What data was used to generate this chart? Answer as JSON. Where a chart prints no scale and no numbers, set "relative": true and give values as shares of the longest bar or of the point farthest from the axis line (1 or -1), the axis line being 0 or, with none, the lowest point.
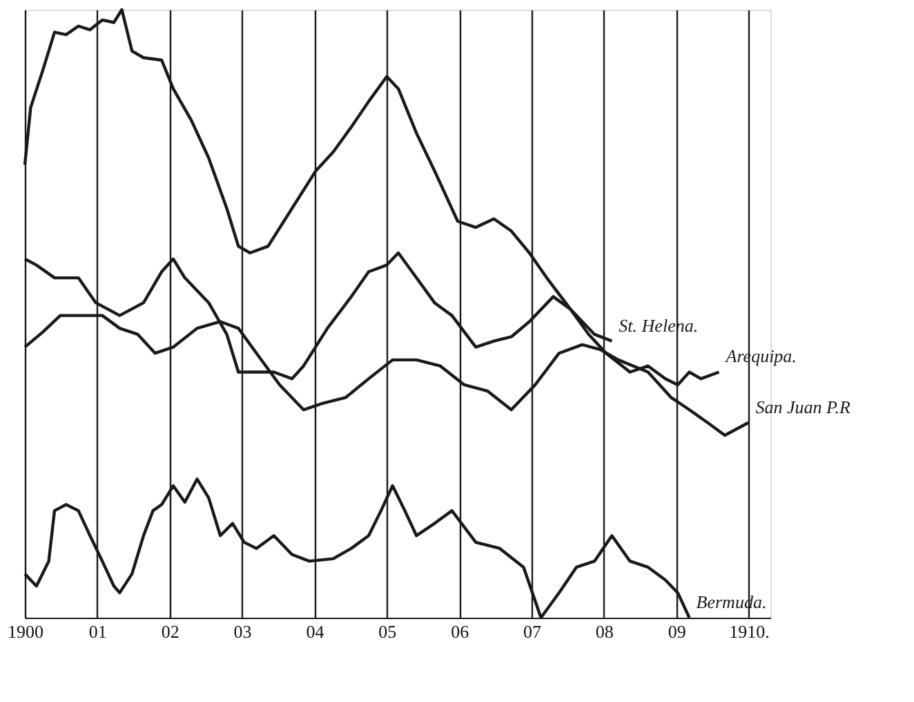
{
  "chart_data": {
    "type": "line",
    "relative": true,
    "xlim": [
      1900,
      1910.3
    ],
    "xticks": [
      {
        "value": 1900,
        "label": "1900"
      },
      {
        "value": 1901,
        "label": "01"
      },
      {
        "value": 1902,
        "label": "02"
      },
      {
        "value": 1903,
        "label": "03"
      },
      {
        "value": 1904,
        "label": "04"
      },
      {
        "value": 1905,
        "label": "05"
      },
      {
        "value": 1906,
        "label": "06"
      },
      {
        "value": 1907,
        "label": "07"
      },
      {
        "value": 1908,
        "label": "08"
      },
      {
        "value": 1909,
        "label": "09"
      },
      {
        "value": 1910,
        "label": "1910."
      }
    ],
    "grid": "x",
    "tick_labels": "x",
    "legend": false,
    "marker": "none",
    "line_style": "solid",
    "series": [
      {
        "name": "St. Helena.",
        "color": "#1a1a1a",
        "x": [
          1900,
          1900.08,
          1900.25,
          1900.41,
          1900.57,
          1900.74,
          1900.9,
          1901.07,
          1901.23,
          1901.34,
          1901.48,
          1901.64,
          1901.89,
          1902.05,
          1902.3,
          1902.54,
          1902.79,
          1902.95,
          1903.11,
          1903.36,
          1903.69,
          1904.02,
          1904.26,
          1904.51,
          1904.75,
          1905.0,
          1905.16,
          1905.41,
          1905.66,
          1905.98,
          1906.23,
          1906.48,
          1906.72,
          1906.97,
          1907.21,
          1907.54,
          1907.87,
          1908.11
        ],
        "values": [
          0.745,
          0.839,
          0.901,
          0.963,
          0.959,
          0.973,
          0.967,
          0.983,
          0.979,
          1,
          0.932,
          0.921,
          0.917,
          0.87,
          0.818,
          0.756,
          0.673,
          0.611,
          0.6,
          0.611,
          0.673,
          0.735,
          0.766,
          0.807,
          0.849,
          0.89,
          0.87,
          0.797,
          0.735,
          0.652,
          0.642,
          0.656,
          0.636,
          0.6,
          0.559,
          0.507,
          0.466,
          0.455
        ]
      },
      {
        "name": "Arequipa.",
        "color": "#1a1a1a",
        "x": [
          1900,
          1900.16,
          1900.41,
          1900.74,
          1900.98,
          1901.31,
          1901.64,
          1901.89,
          1902.05,
          1902.21,
          1902.54,
          1902.79,
          1902.95,
          1903.11,
          1903.44,
          1903.69,
          1903.85,
          1904.18,
          1904.51,
          1904.75,
          1905.0,
          1905.16,
          1905.41,
          1905.66,
          1905.9,
          1906.23,
          1906.48,
          1906.72,
          1906.97,
          1907.3,
          1907.54,
          1907.79,
          1908.03,
          1908.36,
          1908.61,
          1908.85,
          1909.02,
          1909.18,
          1909.34,
          1909.59
        ],
        "values": [
          0.59,
          0.58,
          0.559,
          0.559,
          0.518,
          0.497,
          0.518,
          0.569,
          0.59,
          0.559,
          0.518,
          0.466,
          0.404,
          0.404,
          0.404,
          0.393,
          0.414,
          0.476,
          0.528,
          0.569,
          0.58,
          0.6,
          0.559,
          0.518,
          0.497,
          0.445,
          0.455,
          0.462,
          0.487,
          0.528,
          0.507,
          0.466,
          0.435,
          0.404,
          0.414,
          0.393,
          0.383,
          0.404,
          0.393,
          0.404
        ]
      },
      {
        "name": "San Juan P.R",
        "color": "#1a1a1a",
        "x": [
          1900,
          1900.25,
          1900.49,
          1900.74,
          1901.07,
          1901.31,
          1901.56,
          1901.8,
          1902.05,
          1902.38,
          1902.7,
          1902.95,
          1903.2,
          1903.52,
          1903.85,
          1904.1,
          1904.43,
          1904.75,
          1905.08,
          1905.41,
          1905.74,
          1906.07,
          1906.39,
          1906.72,
          1907.05,
          1907.38,
          1907.7,
          1907.95,
          1908.2,
          1908.61,
          1908.93,
          1909.18,
          1909.43,
          1909.67,
          1910.0
        ],
        "values": [
          0.445,
          0.47,
          0.497,
          0.497,
          0.497,
          0.476,
          0.466,
          0.435,
          0.445,
          0.476,
          0.487,
          0.476,
          0.435,
          0.383,
          0.342,
          0.352,
          0.362,
          0.393,
          0.424,
          0.424,
          0.414,
          0.383,
          0.373,
          0.342,
          0.383,
          0.435,
          0.449,
          0.441,
          0.424,
          0.404,
          0.362,
          0.342,
          0.321,
          0.3,
          0.321
        ]
      },
      {
        "name": "Bermuda.",
        "color": "#1a1a1a",
        "x": [
          1900,
          1900.16,
          1900.33,
          1900.41,
          1900.57,
          1900.74,
          1900.9,
          1901.07,
          1901.23,
          1901.31,
          1901.48,
          1901.64,
          1901.77,
          1901.89,
          1902.05,
          1902.21,
          1902.38,
          1902.54,
          1902.7,
          1902.87,
          1903.03,
          1903.2,
          1903.44,
          1903.69,
          1903.93,
          1904.26,
          1904.51,
          1904.75,
          1904.92,
          1905.08,
          1905.25,
          1905.41,
          1905.66,
          1905.9,
          1906.23,
          1906.56,
          1906.89,
          1907.13,
          1907.38,
          1907.62,
          1907.87,
          1908.11,
          1908.36,
          1908.61,
          1908.85,
          1909.02,
          1909.18
        ],
        "values": [
          0.072,
          0.052,
          0.093,
          0.176,
          0.186,
          0.176,
          0.135,
          0.093,
          0.052,
          0.041,
          0.072,
          0.135,
          0.176,
          0.186,
          0.217,
          0.19,
          0.228,
          0.197,
          0.135,
          0.155,
          0.124,
          0.114,
          0.135,
          0.104,
          0.093,
          0.097,
          0.114,
          0.135,
          0.176,
          0.217,
          0.176,
          0.135,
          0.155,
          0.176,
          0.124,
          0.114,
          0.083,
          0,
          0.041,
          0.083,
          0.093,
          0.135,
          0.093,
          0.083,
          0.062,
          0.041,
          0
        ]
      }
    ]
  }
}
